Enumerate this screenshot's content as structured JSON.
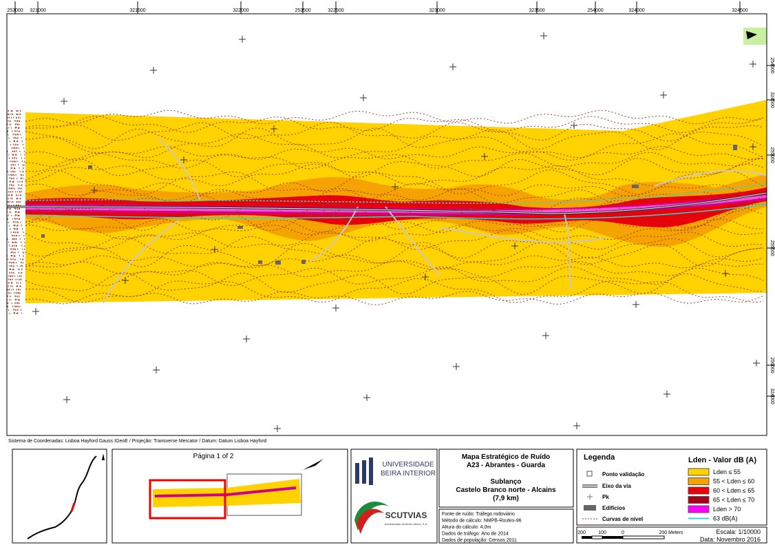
{
  "map": {
    "top_coords": [
      "253000",
      "321000",
      "321500",
      "322000",
      "253500",
      "322500",
      "323000",
      "323500",
      "254000",
      "324000",
      "324500"
    ],
    "right_coords": [
      "254500",
      "324500",
      "255000",
      "255500",
      "256000",
      "324000"
    ],
    "footer": "Sistema de Coordenadas: Lisboa Hayford Gauss IGeoE / Projeção: Transverse Mercator / Datum: Datum Lisboa Hayford"
  },
  "inset": {
    "page": "Página 1 of 2"
  },
  "logos": {
    "university": [
      "UNIVERSIDADE",
      "BEIRA INTERIOR"
    ],
    "company": "SCUTVIAS",
    "company_sub": "Autoestradas da Beira Interior, S.A."
  },
  "title_box": {
    "title": "Mapa Estratégico de Ruído",
    "road": "A23 - Abrantes - Guarda",
    "section_label": "Sublanço",
    "section": "Castelo Branco norte - Alcains",
    "length": "(7,9 km)"
  },
  "info": [
    "Fonte de ruído: Tráfego rodoviário",
    "Método de cálculo: NMPB-Routes-96",
    "Altura do cálculo: 4,0m",
    "Dados de tráfego: Ano de 2014",
    "Dados de população: Censos 2011"
  ],
  "legend": {
    "title": "Legenda",
    "items": [
      "Ponto validação",
      "Eixo da via",
      "Pk",
      "Edifícios",
      "Curvas de nível"
    ],
    "lden_title": "Lden - Valor dB (A)",
    "lden": [
      "Lden ≤ 55",
      "55 < Lden ≤ 60",
      "60 < Lden ≤ 65",
      "65 < Lden ≤ 70",
      "Lden > 70",
      "63 dB(A)"
    ]
  },
  "scale": {
    "ticks": [
      "200",
      "100",
      "0",
      "200 Meters"
    ],
    "ratio": "Escala: 1/10000",
    "date": "Data: Novembro 2016"
  }
}
